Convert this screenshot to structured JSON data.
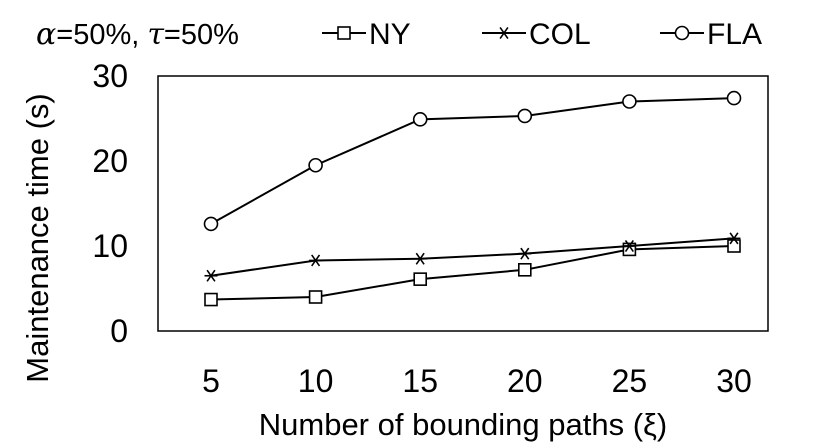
{
  "chart_data": {
    "type": "line",
    "title": "",
    "annotation": {
      "alpha_symbol": "α",
      "alpha_value": "=50%,",
      "tau_symbol": "τ",
      "tau_value": "=50%"
    },
    "xlabel": "Number of bounding paths (ξ)",
    "ylabel": "Maintenance  time (s)",
    "x": [
      5,
      10,
      15,
      20,
      25,
      30
    ],
    "x_tick_labels": [
      "5",
      "10",
      "15",
      "20",
      "25",
      "30"
    ],
    "y_ticks": [
      0,
      10,
      20,
      30
    ],
    "y_tick_labels": [
      "0",
      "10",
      "20",
      "30"
    ],
    "ylim": [
      0,
      30
    ],
    "grid": false,
    "legend_position": "top",
    "series": [
      {
        "name": "NY",
        "marker": "square",
        "values": [
          3.7,
          4.0,
          6.1,
          7.2,
          9.6,
          10.0
        ]
      },
      {
        "name": "COL",
        "marker": "asterisk",
        "values": [
          6.5,
          8.3,
          8.5,
          9.1,
          10.0,
          10.9
        ]
      },
      {
        "name": "FLA",
        "marker": "circle",
        "values": [
          12.6,
          19.5,
          24.9,
          25.3,
          27.0,
          27.4
        ]
      }
    ],
    "colors": {
      "line": "#000000",
      "background": "#ffffff"
    }
  }
}
